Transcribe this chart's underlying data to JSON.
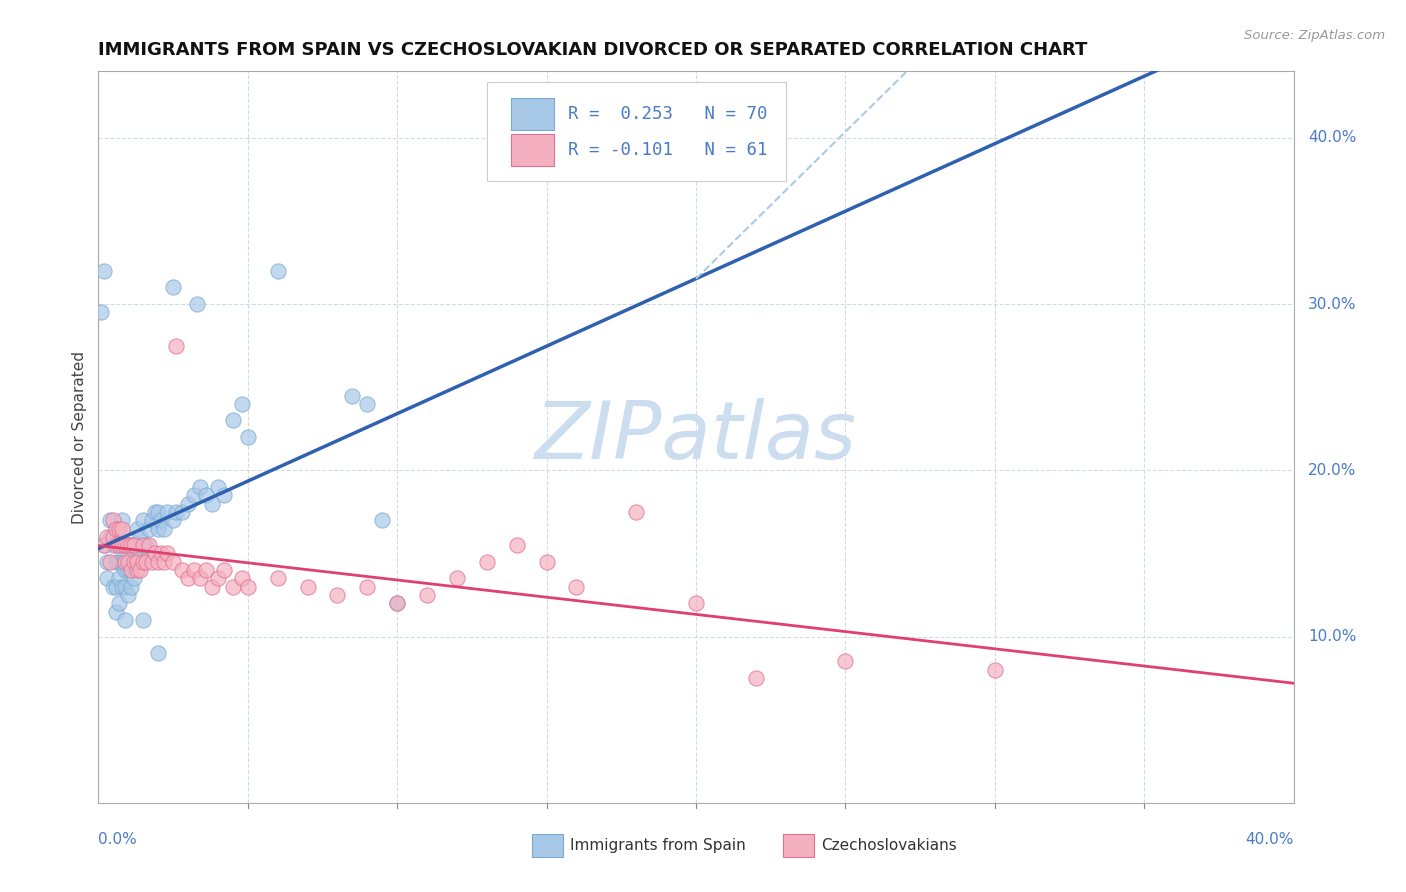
{
  "title": "IMMIGRANTS FROM SPAIN VS CZECHOSLOVAKIAN DIVORCED OR SEPARATED CORRELATION CHART",
  "source": "Source: ZipAtlas.com",
  "ylabel": "Divorced or Separated",
  "yaxis_ticks": [
    [
      "10.0%",
      10.0
    ],
    [
      "20.0%",
      20.0
    ],
    [
      "30.0%",
      30.0
    ],
    [
      "40.0%",
      40.0
    ]
  ],
  "xaxis_range": [
    0.0,
    40.0
  ],
  "yaxis_range": [
    0.0,
    44.0
  ],
  "color_spain": "#a8c8e8",
  "color_czech": "#f4b0c0",
  "color_spain_edge": "#7aaad0",
  "color_czech_edge": "#e07090",
  "color_spain_line": "#3060b0",
  "color_czech_line": "#e04070",
  "color_dashed_line": "#b0c8e0",
  "watermark_color": "#ccddf0",
  "grid_color": "#d0dce8",
  "scatter_spain": [
    [
      0.2,
      15.5
    ],
    [
      0.3,
      14.5
    ],
    [
      0.3,
      13.5
    ],
    [
      0.4,
      16.0
    ],
    [
      0.4,
      17.0
    ],
    [
      0.5,
      13.0
    ],
    [
      0.5,
      15.5
    ],
    [
      0.5,
      16.0
    ],
    [
      0.6,
      11.5
    ],
    [
      0.6,
      13.0
    ],
    [
      0.6,
      14.5
    ],
    [
      0.7,
      12.0
    ],
    [
      0.7,
      13.5
    ],
    [
      0.7,
      14.5
    ],
    [
      0.7,
      15.5
    ],
    [
      0.8,
      13.0
    ],
    [
      0.8,
      14.5
    ],
    [
      0.8,
      15.5
    ],
    [
      0.8,
      17.0
    ],
    [
      0.9,
      11.0
    ],
    [
      0.9,
      13.0
    ],
    [
      0.9,
      14.0
    ],
    [
      0.9,
      15.5
    ],
    [
      1.0,
      12.5
    ],
    [
      1.0,
      14.0
    ],
    [
      1.0,
      15.5
    ],
    [
      1.1,
      13.0
    ],
    [
      1.1,
      14.0
    ],
    [
      1.1,
      15.5
    ],
    [
      1.2,
      13.5
    ],
    [
      1.2,
      15.0
    ],
    [
      1.3,
      15.5
    ],
    [
      1.3,
      16.5
    ],
    [
      1.4,
      15.0
    ],
    [
      1.4,
      16.0
    ],
    [
      1.5,
      15.5
    ],
    [
      1.5,
      17.0
    ],
    [
      1.6,
      15.5
    ],
    [
      1.7,
      16.5
    ],
    [
      1.8,
      17.0
    ],
    [
      1.9,
      17.5
    ],
    [
      2.0,
      16.5
    ],
    [
      2.0,
      17.5
    ],
    [
      2.1,
      17.0
    ],
    [
      2.2,
      16.5
    ],
    [
      2.3,
      17.5
    ],
    [
      2.5,
      17.0
    ],
    [
      2.6,
      17.5
    ],
    [
      2.8,
      17.5
    ],
    [
      3.0,
      18.0
    ],
    [
      3.2,
      18.5
    ],
    [
      3.4,
      19.0
    ],
    [
      3.6,
      18.5
    ],
    [
      3.8,
      18.0
    ],
    [
      4.0,
      19.0
    ],
    [
      4.2,
      18.5
    ],
    [
      4.5,
      23.0
    ],
    [
      4.8,
      24.0
    ],
    [
      5.0,
      22.0
    ],
    [
      6.0,
      32.0
    ],
    [
      2.5,
      31.0
    ],
    [
      3.3,
      30.0
    ],
    [
      0.1,
      29.5
    ],
    [
      0.2,
      32.0
    ],
    [
      8.5,
      24.5
    ],
    [
      9.0,
      24.0
    ],
    [
      9.5,
      17.0
    ],
    [
      10.0,
      12.0
    ],
    [
      1.5,
      11.0
    ],
    [
      2.0,
      9.0
    ]
  ],
  "scatter_czech": [
    [
      0.2,
      15.5
    ],
    [
      0.3,
      16.0
    ],
    [
      0.4,
      14.5
    ],
    [
      0.5,
      16.0
    ],
    [
      0.5,
      17.0
    ],
    [
      0.6,
      15.5
    ],
    [
      0.6,
      16.5
    ],
    [
      0.7,
      15.5
    ],
    [
      0.7,
      16.5
    ],
    [
      0.8,
      15.5
    ],
    [
      0.8,
      16.5
    ],
    [
      0.9,
      14.5
    ],
    [
      0.9,
      15.5
    ],
    [
      1.0,
      14.5
    ],
    [
      1.0,
      15.5
    ],
    [
      1.1,
      14.0
    ],
    [
      1.1,
      15.5
    ],
    [
      1.2,
      14.5
    ],
    [
      1.2,
      15.5
    ],
    [
      1.3,
      14.0
    ],
    [
      1.3,
      14.5
    ],
    [
      1.4,
      14.0
    ],
    [
      1.5,
      14.5
    ],
    [
      1.5,
      15.5
    ],
    [
      1.6,
      14.5
    ],
    [
      1.7,
      15.5
    ],
    [
      1.8,
      14.5
    ],
    [
      1.9,
      15.0
    ],
    [
      2.0,
      14.5
    ],
    [
      2.1,
      15.0
    ],
    [
      2.2,
      14.5
    ],
    [
      2.3,
      15.0
    ],
    [
      2.5,
      14.5
    ],
    [
      2.6,
      27.5
    ],
    [
      2.8,
      14.0
    ],
    [
      3.0,
      13.5
    ],
    [
      3.2,
      14.0
    ],
    [
      3.4,
      13.5
    ],
    [
      3.6,
      14.0
    ],
    [
      3.8,
      13.0
    ],
    [
      4.0,
      13.5
    ],
    [
      4.2,
      14.0
    ],
    [
      4.5,
      13.0
    ],
    [
      4.8,
      13.5
    ],
    [
      5.0,
      13.0
    ],
    [
      6.0,
      13.5
    ],
    [
      7.0,
      13.0
    ],
    [
      8.0,
      12.5
    ],
    [
      9.0,
      13.0
    ],
    [
      10.0,
      12.0
    ],
    [
      11.0,
      12.5
    ],
    [
      12.0,
      13.5
    ],
    [
      13.0,
      14.5
    ],
    [
      14.0,
      15.5
    ],
    [
      15.0,
      14.5
    ],
    [
      16.0,
      13.0
    ],
    [
      18.0,
      17.5
    ],
    [
      20.0,
      12.0
    ],
    [
      22.0,
      7.5
    ],
    [
      25.0,
      8.5
    ],
    [
      30.0,
      8.0
    ]
  ]
}
